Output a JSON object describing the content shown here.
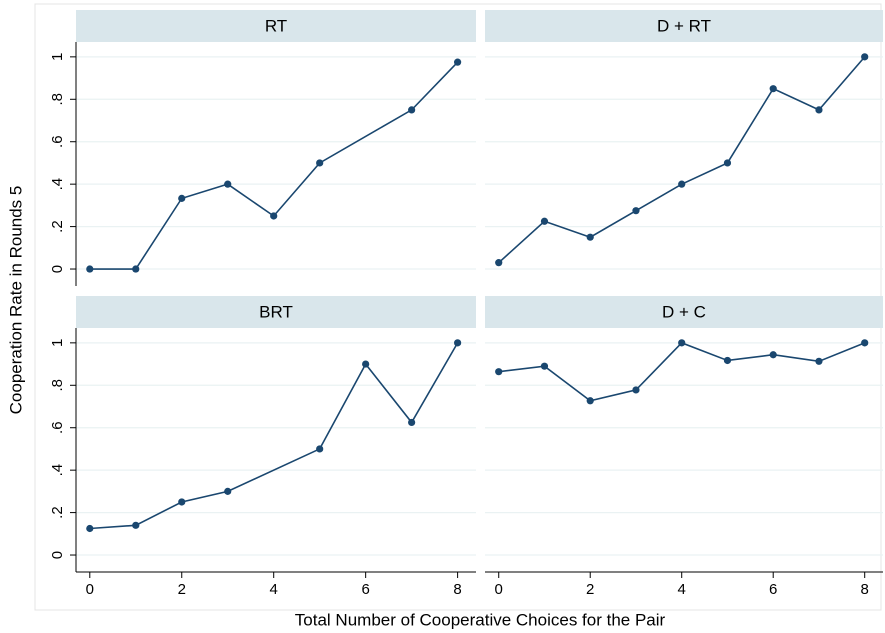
{
  "axis_titles": {
    "x": "Total Number of Cooperative Choices for the Pair",
    "y": "Cooperation Rate in Rounds 5"
  },
  "chart_data": [
    {
      "type": "line",
      "title": "RT",
      "x": [
        0,
        1,
        2,
        3,
        4,
        5,
        7,
        8
      ],
      "values": [
        0,
        0,
        0.333,
        0.4,
        0.25,
        0.5,
        0.75,
        0.975
      ],
      "color": "#1a476f",
      "xlim": [
        -0.3,
        8.4
      ],
      "ylim": [
        -0.08,
        1.07
      ],
      "xticks": [
        0,
        2,
        4,
        6,
        8
      ],
      "yticks": [
        0,
        {
          "value": 0.2,
          "label": ".2"
        },
        {
          "value": 0.4,
          "label": ".4"
        },
        {
          "value": 0.6,
          "label": ".6"
        },
        {
          "value": 0.8,
          "label": ".8"
        },
        1
      ],
      "grid": true
    },
    {
      "type": "line",
      "title": "D + RT",
      "x": [
        0,
        1,
        2,
        3,
        4,
        5,
        6,
        7,
        8
      ],
      "values": [
        0.03,
        0.225,
        0.15,
        0.275,
        0.4,
        0.5,
        0.85,
        0.75,
        1
      ],
      "color": "#1a476f",
      "xlim": [
        -0.3,
        8.4
      ],
      "ylim": [
        -0.08,
        1.07
      ],
      "xticks": [
        0,
        2,
        4,
        6,
        8
      ],
      "yticks": [
        0,
        {
          "value": 0.2,
          "label": ".2"
        },
        {
          "value": 0.4,
          "label": ".4"
        },
        {
          "value": 0.6,
          "label": ".6"
        },
        {
          "value": 0.8,
          "label": ".8"
        },
        1
      ],
      "grid": true
    },
    {
      "type": "line",
      "title": "BRT",
      "x": [
        0,
        1,
        2,
        3,
        5,
        6,
        7,
        8
      ],
      "values": [
        0.125,
        0.14,
        0.25,
        0.3,
        0.5,
        0.9,
        0.625,
        1
      ],
      "color": "#1a476f",
      "xlim": [
        -0.3,
        8.4
      ],
      "ylim": [
        -0.08,
        1.07
      ],
      "xticks": [
        0,
        2,
        4,
        6,
        8
      ],
      "yticks": [
        0,
        {
          "value": 0.2,
          "label": ".2"
        },
        {
          "value": 0.4,
          "label": ".4"
        },
        {
          "value": 0.6,
          "label": ".6"
        },
        {
          "value": 0.8,
          "label": ".8"
        },
        1
      ],
      "grid": true
    },
    {
      "type": "line",
      "title": "D + C",
      "x": [
        0,
        1,
        2,
        3,
        4,
        5,
        6,
        7,
        8
      ],
      "values": [
        0.864,
        0.89,
        0.727,
        0.778,
        1,
        0.917,
        0.944,
        0.913,
        1
      ],
      "color": "#1a476f",
      "xlim": [
        -0.3,
        8.4
      ],
      "ylim": [
        -0.08,
        1.07
      ],
      "xticks": [
        0,
        2,
        4,
        6,
        8
      ],
      "yticks": [
        0,
        {
          "value": 0.2,
          "label": ".2"
        },
        {
          "value": 0.4,
          "label": ".4"
        },
        {
          "value": 0.6,
          "label": ".6"
        },
        {
          "value": 0.8,
          "label": ".8"
        },
        1
      ],
      "grid": true
    }
  ]
}
